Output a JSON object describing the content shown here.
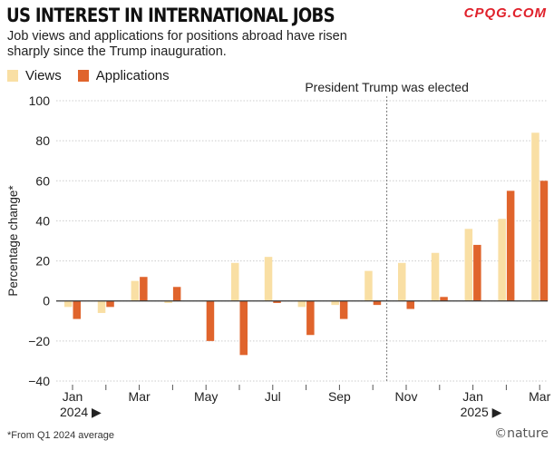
{
  "header": {
    "title": "US INTEREST IN INTERNATIONAL JOBS",
    "watermark": "CPQG.COM",
    "subtitle": "Job views and applications for positions abroad have risen sharply since the Trump inauguration."
  },
  "footer": {
    "footnote": "*From Q1 2024 average",
    "brand": "©nature"
  },
  "colors": {
    "views": "#f9dfa4",
    "applications": "#e0642c",
    "grid": "#cccccc",
    "axis": "#333333"
  },
  "chart_data": {
    "type": "bar",
    "title": "US INTEREST IN INTERNATIONAL JOBS",
    "ylabel": "Percentage change*",
    "xlabel": "",
    "ylim": [
      -40,
      100
    ],
    "yticks": [
      -40,
      -20,
      0,
      20,
      40,
      60,
      80,
      100
    ],
    "grid": true,
    "legend_position": "top-left",
    "categories": [
      "Jan 2024",
      "Feb 2024",
      "Mar 2024",
      "Apr 2024",
      "May 2024",
      "Jun 2024",
      "Jul 2024",
      "Aug 2024",
      "Sep 2024",
      "Oct 2024",
      "Nov 2024",
      "Dec 2024",
      "Jan 2025",
      "Feb 2025",
      "Mar 2025"
    ],
    "tick_labels": [
      {
        "index": 0,
        "label": "Jan"
      },
      {
        "index": 2,
        "label": "Mar"
      },
      {
        "index": 4,
        "label": "May"
      },
      {
        "index": 6,
        "label": "Jul"
      },
      {
        "index": 8,
        "label": "Sep"
      },
      {
        "index": 10,
        "label": "Nov"
      },
      {
        "index": 12,
        "label": "Jan"
      },
      {
        "index": 14,
        "label": "Mar"
      }
    ],
    "year_labels": [
      {
        "index": 0,
        "label": "2024 ▶"
      },
      {
        "index": 12,
        "label": "2025 ▶"
      }
    ],
    "series": [
      {
        "name": "Views",
        "values": [
          -3,
          -6,
          10,
          -1,
          0,
          19,
          22,
          -3,
          -2,
          15,
          19,
          24,
          36,
          41,
          84
        ]
      },
      {
        "name": "Applications",
        "values": [
          -9,
          -3,
          12,
          7,
          -20,
          -27,
          -1,
          -17,
          -9,
          -2,
          -4,
          2,
          28,
          55,
          60
        ]
      }
    ],
    "annotations": [
      {
        "text": "President Trump was elected",
        "between_index": [
          9,
          10
        ]
      }
    ]
  }
}
